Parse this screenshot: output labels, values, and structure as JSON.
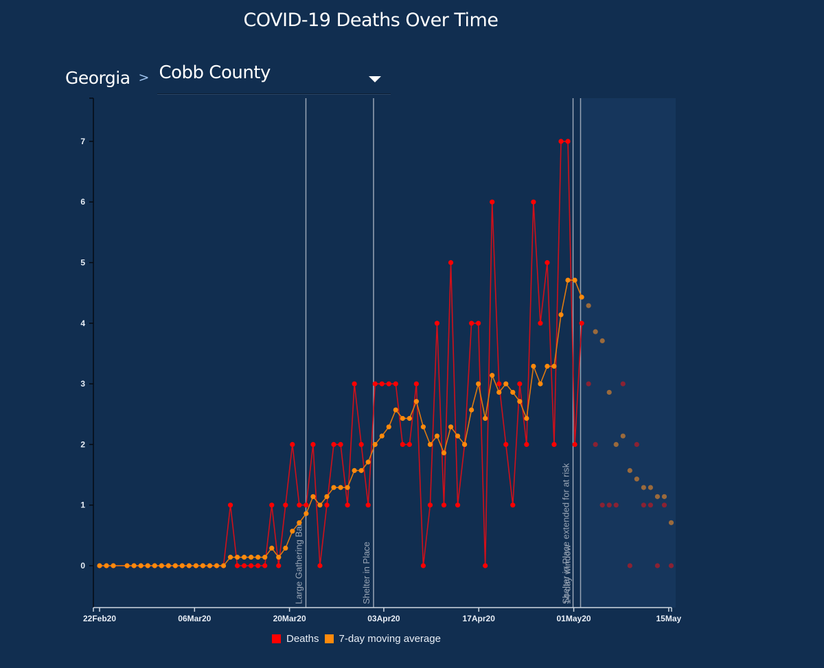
{
  "page": {
    "title": "COVID-19 Deaths Over Time",
    "breadcrumb_state": "Georgia",
    "breadcrumb_separator": ">",
    "county_select": {
      "selected": "Cobb County",
      "icon": "caret-down-icon"
    }
  },
  "colors": {
    "background": "#112e50",
    "projection_shade": "#16365c",
    "deaths": "#ff0000",
    "deaths_line": "#d0101a",
    "moving_average": "#ff8a0c",
    "moving_average_line": "#e07a10",
    "faded_deaths": "#8a2233",
    "faded_average": "#9a6a3c",
    "event_line": "#9aa6b6",
    "axis": "#e8eef6"
  },
  "chart_data": {
    "type": "line",
    "title": "COVID-19 Deaths Over Time",
    "xlabel": "",
    "ylabel": "",
    "x_unit": "days since first data point",
    "ylim": [
      -0.7,
      7.7
    ],
    "yticks": [
      0,
      1,
      2,
      3,
      4,
      5,
      6,
      7
    ],
    "xlim": [
      -1,
      84
    ],
    "xticks": [
      {
        "label": "22Feb20",
        "day": 0
      },
      {
        "label": "06Mar20",
        "day": 13.9
      },
      {
        "label": "20Mar20",
        "day": 27.8
      },
      {
        "label": "03Apr20",
        "day": 41.6
      },
      {
        "label": "17Apr20",
        "day": 55.5
      },
      {
        "label": "01May20",
        "day": 69.4
      },
      {
        "label": "15May",
        "day": 83.3
      }
    ],
    "grid": false,
    "legend": {
      "placement": "bottom-center",
      "entries": [
        {
          "label": "Deaths",
          "color": "#ff0000"
        },
        {
          "label": "7-day moving average",
          "color": "#ff8a0c"
        }
      ]
    },
    "events": [
      {
        "label": "Large Gathering Ban",
        "day": 30.2
      },
      {
        "label": "Shelter in Place",
        "day": 40.1
      },
      {
        "label": "Shelter in Place extended for at risk",
        "day": 69.3
      },
      {
        "label": "14-day window",
        "day": 70.4
      }
    ],
    "shaded_region": {
      "label": "14-day window",
      "from_day": 70.4,
      "to_day": 84
    },
    "series": [
      {
        "name": "Deaths",
        "points": [
          [
            0,
            0
          ],
          [
            1,
            0
          ],
          [
            2,
            0
          ],
          [
            4,
            0
          ],
          [
            5,
            0
          ],
          [
            6,
            0
          ],
          [
            7,
            0
          ],
          [
            8,
            0
          ],
          [
            9,
            0
          ],
          [
            10,
            0
          ],
          [
            11,
            0
          ],
          [
            12,
            0
          ],
          [
            13,
            0
          ],
          [
            14,
            0
          ],
          [
            15,
            0
          ],
          [
            16,
            0
          ],
          [
            17,
            0
          ],
          [
            18,
            0
          ],
          [
            19,
            1
          ],
          [
            20,
            0
          ],
          [
            21,
            0
          ],
          [
            22,
            0
          ],
          [
            23,
            0
          ],
          [
            24,
            0
          ],
          [
            25,
            1
          ],
          [
            26,
            0
          ],
          [
            27,
            1
          ],
          [
            28,
            2
          ],
          [
            29,
            1
          ],
          [
            30,
            1
          ],
          [
            31,
            2
          ],
          [
            32,
            0
          ],
          [
            33,
            1
          ],
          [
            34,
            2
          ],
          [
            35,
            2
          ],
          [
            36,
            1
          ],
          [
            37,
            3
          ],
          [
            38,
            2
          ],
          [
            39,
            1
          ],
          [
            40,
            3
          ],
          [
            41,
            3
          ],
          [
            42,
            3
          ],
          [
            43,
            3
          ],
          [
            44,
            2
          ],
          [
            45,
            2
          ],
          [
            46,
            3
          ],
          [
            47,
            0
          ],
          [
            48,
            1
          ],
          [
            49,
            4
          ],
          [
            50,
            1
          ],
          [
            51,
            5
          ],
          [
            52,
            1
          ],
          [
            53,
            2
          ],
          [
            54,
            4
          ],
          [
            55,
            4
          ],
          [
            56,
            0
          ],
          [
            57,
            6
          ],
          [
            58,
            3
          ],
          [
            59,
            2
          ],
          [
            60,
            1
          ],
          [
            61,
            3
          ],
          [
            62,
            2
          ],
          [
            63,
            6
          ],
          [
            64,
            4
          ],
          [
            65,
            5
          ],
          [
            66,
            2
          ],
          [
            67,
            7
          ],
          [
            68,
            7
          ],
          [
            69,
            2
          ],
          [
            70,
            4
          ]
        ],
        "faded_points": [
          [
            71,
            3
          ],
          [
            72,
            2
          ],
          [
            73,
            1
          ],
          [
            74,
            1
          ],
          [
            75,
            1
          ],
          [
            76,
            3
          ],
          [
            77,
            0
          ],
          [
            78,
            2
          ],
          [
            79,
            1
          ],
          [
            80,
            1
          ],
          [
            81,
            0
          ],
          [
            82,
            1
          ],
          [
            83,
            0
          ]
        ]
      },
      {
        "name": "7-day moving average",
        "points": [
          [
            0,
            0
          ],
          [
            1,
            0
          ],
          [
            2,
            0
          ],
          [
            4,
            0
          ],
          [
            5,
            0
          ],
          [
            6,
            0
          ],
          [
            7,
            0
          ],
          [
            8,
            0
          ],
          [
            9,
            0
          ],
          [
            10,
            0
          ],
          [
            11,
            0
          ],
          [
            12,
            0
          ],
          [
            13,
            0
          ],
          [
            14,
            0
          ],
          [
            15,
            0
          ],
          [
            16,
            0
          ],
          [
            17,
            0
          ],
          [
            18,
            0
          ],
          [
            19,
            0.14
          ],
          [
            20,
            0.14
          ],
          [
            21,
            0.14
          ],
          [
            22,
            0.14
          ],
          [
            23,
            0.14
          ],
          [
            24,
            0.14
          ],
          [
            25,
            0.29
          ],
          [
            26,
            0.14
          ],
          [
            27,
            0.29
          ],
          [
            28,
            0.57
          ],
          [
            29,
            0.71
          ],
          [
            30,
            0.86
          ],
          [
            31,
            1.14
          ],
          [
            32,
            1.0
          ],
          [
            33,
            1.14
          ],
          [
            34,
            1.29
          ],
          [
            35,
            1.29
          ],
          [
            36,
            1.29
          ],
          [
            37,
            1.57
          ],
          [
            38,
            1.57
          ],
          [
            39,
            1.71
          ],
          [
            40,
            2.0
          ],
          [
            41,
            2.14
          ],
          [
            42,
            2.29
          ],
          [
            43,
            2.57
          ],
          [
            44,
            2.43
          ],
          [
            45,
            2.43
          ],
          [
            46,
            2.71
          ],
          [
            47,
            2.29
          ],
          [
            48,
            2.0
          ],
          [
            49,
            2.14
          ],
          [
            50,
            1.86
          ],
          [
            51,
            2.29
          ],
          [
            52,
            2.14
          ],
          [
            53,
            2.0
          ],
          [
            54,
            2.57
          ],
          [
            55,
            3.0
          ],
          [
            56,
            2.43
          ],
          [
            57,
            3.14
          ],
          [
            58,
            2.86
          ],
          [
            59,
            3.0
          ],
          [
            60,
            2.86
          ],
          [
            61,
            2.71
          ],
          [
            62,
            2.43
          ],
          [
            63,
            3.29
          ],
          [
            64,
            3.0
          ],
          [
            65,
            3.29
          ],
          [
            66,
            3.29
          ],
          [
            67,
            4.14
          ],
          [
            68,
            4.71
          ],
          [
            69,
            4.71
          ],
          [
            70,
            4.43
          ]
        ],
        "faded_points": [
          [
            71,
            4.29
          ],
          [
            72,
            3.86
          ],
          [
            73,
            3.71
          ],
          [
            74,
            2.86
          ],
          [
            75,
            2.0
          ],
          [
            76,
            2.14
          ],
          [
            77,
            1.57
          ],
          [
            78,
            1.43
          ],
          [
            79,
            1.29
          ],
          [
            80,
            1.29
          ],
          [
            81,
            1.14
          ],
          [
            82,
            1.14
          ],
          [
            83,
            0.71
          ]
        ]
      }
    ]
  }
}
